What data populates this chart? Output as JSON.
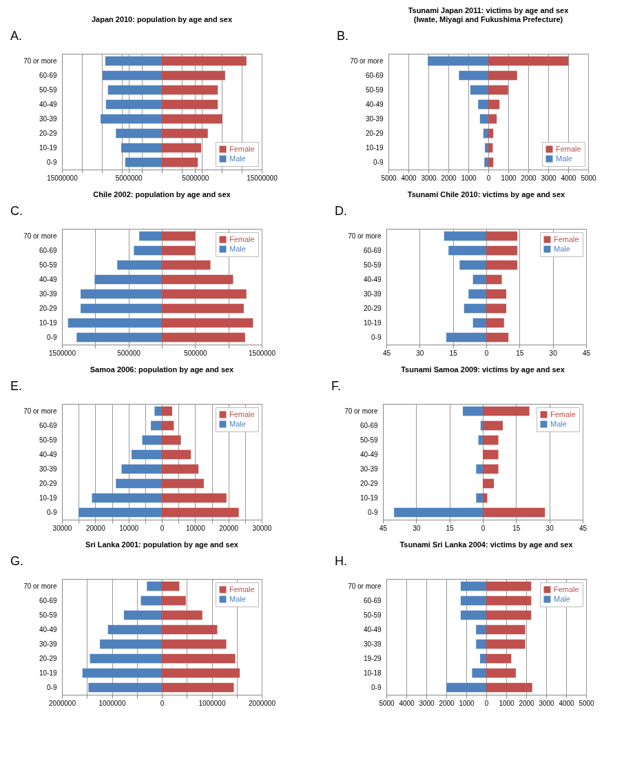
{
  "chart_data": [
    {
      "type": "bar",
      "orientation": "horizontal",
      "stacked": true,
      "title": "Japan 2010: population by age and sex",
      "annotations": [
        "A."
      ],
      "categories": [
        "70 or more",
        "60-69",
        "50-59",
        "40-49",
        "30-39",
        "20-29",
        "10-19",
        "0-9"
      ],
      "legend": "bottom right",
      "grid": true,
      "series": [
        {
          "name": "Female",
          "color": "#c0504d",
          "values": [
            12700000,
            9500000,
            8400000,
            8400000,
            9100000,
            6900000,
            5900000,
            5400000
          ]
        },
        {
          "name": "Male",
          "color": "#4f81bd",
          "values": [
            -8500000,
            -8900000,
            -8100000,
            -8400000,
            -9200000,
            -6900000,
            -6100000,
            -5500000
          ]
        }
      ],
      "xlim": [
        -15000000,
        15000000
      ],
      "xticks": [
        {
          "value": -15000000,
          "label": "15000000"
        },
        {
          "value": -12000000,
          "label": null
        },
        {
          "value": -9000000,
          "label": null
        },
        {
          "value": -6000000,
          "label": null
        },
        {
          "value": -5000000,
          "label": "5000000"
        },
        {
          "value": -3000000,
          "label": null
        },
        {
          "value": 0,
          "label": null
        },
        {
          "value": 3000000,
          "label": null
        },
        {
          "value": 5000000,
          "label": "5000000"
        },
        {
          "value": 6000000,
          "label": null
        },
        {
          "value": 9000000,
          "label": null
        },
        {
          "value": 12000000,
          "label": null
        },
        {
          "value": 15000000,
          "label": "15000000"
        }
      ]
    },
    {
      "type": "bar",
      "orientation": "horizontal",
      "stacked": true,
      "title": "Tsunami Japan 2011: victims by age and sex\n(Iwate, Miyagi and Fukushima Prefecture)",
      "annotations": [
        "B."
      ],
      "categories": [
        "70 or more",
        "60-69",
        "50-59",
        "40-49",
        "30-39",
        "20-29",
        "10-19",
        "0-9"
      ],
      "legend": "bottom right",
      "grid": true,
      "series": [
        {
          "name": "Female",
          "color": "#c0504d",
          "values": [
            4010,
            1440,
            990,
            560,
            420,
            250,
            220,
            250
          ]
        },
        {
          "name": "Male",
          "color": "#4f81bd",
          "values": [
            -3030,
            -1470,
            -900,
            -510,
            -420,
            -250,
            -170,
            -200
          ]
        }
      ],
      "xlim": [
        -5000,
        5000
      ],
      "xticks": [
        {
          "value": -5000,
          "label": "5000"
        },
        {
          "value": -4000,
          "label": "4000"
        },
        {
          "value": -3000,
          "label": "3000"
        },
        {
          "value": -2000,
          "label": "2000"
        },
        {
          "value": -1000,
          "label": "1000"
        },
        0,
        1000,
        2000,
        3000,
        4000,
        5000
      ]
    },
    {
      "type": "bar",
      "orientation": "horizontal",
      "stacked": true,
      "title": "Chile 2002: population by age and sex",
      "annotations": [
        "C."
      ],
      "categories": [
        "70 or more",
        "60-69",
        "50-59",
        "40-49",
        "30-39",
        "20-29",
        "10-19",
        "0-9"
      ],
      "legend": "top right",
      "grid": true,
      "series": [
        {
          "name": "Female",
          "color": "#c0504d",
          "values": [
            500000,
            500000,
            730000,
            1070000,
            1270000,
            1230000,
            1370000,
            1250000
          ]
        },
        {
          "name": "Male",
          "color": "#4f81bd",
          "values": [
            -340000,
            -420000,
            -670000,
            -1010000,
            -1220000,
            -1220000,
            -1410000,
            -1280000
          ]
        }
      ],
      "xlim": [
        -1500000,
        1500000
      ],
      "xticks": [
        {
          "value": -1500000,
          "label": "1500000"
        },
        {
          "value": -1000000,
          "label": null
        },
        {
          "value": -500000,
          "label": "500000"
        },
        {
          "value": 0,
          "label": null
        },
        {
          "value": 500000,
          "label": "500000"
        },
        {
          "value": 1000000,
          "label": null
        },
        {
          "value": 1500000,
          "label": "1500000"
        }
      ]
    },
    {
      "type": "bar",
      "orientation": "horizontal",
      "stacked": true,
      "title": "Tsunami Chile 2010: victims by age and sex",
      "annotations": [
        "D."
      ],
      "categories": [
        "70 or more",
        "60-69",
        "50-59",
        "40-49",
        "30-39",
        "20-29",
        "10-19",
        "0-9"
      ],
      "legend": "top right",
      "grid": true,
      "series": [
        {
          "name": "Female",
          "color": "#c0504d",
          "values": [
            14,
            14,
            14,
            7,
            9,
            9,
            8,
            10
          ]
        },
        {
          "name": "Male",
          "color": "#4f81bd",
          "values": [
            -19,
            -17,
            -12,
            -6,
            -8,
            -10,
            -6,
            -18
          ]
        }
      ],
      "xlim": [
        -45,
        45
      ],
      "xticks": [
        {
          "value": -45,
          "label": "45"
        },
        {
          "value": -30,
          "label": "30"
        },
        {
          "value": -15,
          "label": "15"
        },
        0,
        15,
        30,
        45
      ]
    },
    {
      "type": "bar",
      "orientation": "horizontal",
      "stacked": true,
      "title": "Samoa 2006: population by age and sex",
      "annotations": [
        "E."
      ],
      "categories": [
        "70 or more",
        "60-69",
        "50-59",
        "40-49",
        "30-39",
        "20-29",
        "10-19",
        "0-9"
      ],
      "legend": "top right",
      "grid": true,
      "series": [
        {
          "name": "Female",
          "color": "#c0504d",
          "values": [
            3100,
            3600,
            5700,
            8700,
            11000,
            12600,
            19400,
            23100
          ]
        },
        {
          "name": "Male",
          "color": "#4f81bd",
          "values": [
            -2200,
            -3300,
            -5900,
            -9100,
            -12100,
            -13800,
            -21000,
            -25000
          ]
        }
      ],
      "xlim": [
        -30000,
        30000
      ],
      "xticks": [
        {
          "value": -30000,
          "label": "30000"
        },
        {
          "value": -25000,
          "label": null
        },
        {
          "value": -20000,
          "label": "20000"
        },
        {
          "value": -15000,
          "label": null
        },
        {
          "value": -10000,
          "label": "10000"
        },
        {
          "value": -5000,
          "label": null
        },
        0,
        {
          "value": 5000,
          "label": null
        },
        10000,
        {
          "value": 15000,
          "label": null
        },
        20000,
        {
          "value": 25000,
          "label": null
        },
        30000
      ]
    },
    {
      "type": "bar",
      "orientation": "horizontal",
      "stacked": true,
      "title": "Tsunami Samoa 2009: victims by age and sex",
      "annotations": [
        "F."
      ],
      "categories": [
        "70 or more",
        "60-69",
        "50-59",
        "40-49",
        "30-39",
        "20-29",
        "10-19",
        "0-9"
      ],
      "legend": "top right",
      "grid": true,
      "series": [
        {
          "name": "Female",
          "color": "#c0504d",
          "values": [
            21,
            9,
            7,
            7,
            7,
            5,
            2,
            28
          ]
        },
        {
          "name": "Male",
          "color": "#4f81bd",
          "values": [
            -9,
            -1,
            -2,
            0,
            -3,
            0,
            -3,
            -40
          ]
        }
      ],
      "xlim": [
        -45,
        45
      ],
      "xticks": [
        {
          "value": -45,
          "label": "45"
        },
        {
          "value": -30,
          "label": "30"
        },
        {
          "value": -15,
          "label": "15"
        },
        0,
        15,
        30,
        45
      ]
    },
    {
      "type": "bar",
      "orientation": "horizontal",
      "stacked": true,
      "title": "Sri Lanka 2001: population by age and sex",
      "annotations": [
        "G."
      ],
      "categories": [
        "70 or more",
        "60-69",
        "50-59",
        "40-49",
        "30-39",
        "20-29",
        "10-19",
        "0-9"
      ],
      "legend": "top right",
      "grid": true,
      "series": [
        {
          "name": "Female",
          "color": "#c0504d",
          "values": [
            350000,
            480000,
            810000,
            1110000,
            1290000,
            1470000,
            1560000,
            1440000
          ]
        },
        {
          "name": "Male",
          "color": "#4f81bd",
          "values": [
            -300000,
            -420000,
            -760000,
            -1080000,
            -1240000,
            -1440000,
            -1590000,
            -1470000
          ]
        }
      ],
      "xlim": [
        -2000000,
        2000000
      ],
      "xticks": [
        {
          "value": -2000000,
          "label": "2000000"
        },
        {
          "value": -1500000,
          "label": null
        },
        {
          "value": -1000000,
          "label": "1000000"
        },
        {
          "value": -500000,
          "label": null
        },
        0,
        {
          "value": 500000,
          "label": null
        },
        1000000,
        {
          "value": 1500000,
          "label": null
        },
        2000000
      ]
    },
    {
      "type": "bar",
      "orientation": "horizontal",
      "stacked": true,
      "title": "Tsunami Sri Lanka 2004: victims by age and sex",
      "annotations": [
        "H."
      ],
      "categories": [
        "70 or more",
        "60-69",
        "50-59",
        "40-49",
        "30-39",
        "19-29",
        "10-18",
        "0-9"
      ],
      "legend": "top right",
      "grid": true,
      "series": [
        {
          "name": "Female",
          "color": "#c0504d",
          "values": [
            2250,
            2250,
            2250,
            1950,
            1950,
            1250,
            1480,
            2300
          ]
        },
        {
          "name": "Male",
          "color": "#4f81bd",
          "values": [
            -1280,
            -1280,
            -1280,
            -510,
            -510,
            -310,
            -710,
            -2000
          ]
        }
      ],
      "xlim": [
        -5000,
        5000
      ],
      "xticks": [
        {
          "value": -5000,
          "label": "5000"
        },
        {
          "value": -4000,
          "label": "4000"
        },
        {
          "value": -3000,
          "label": "3000"
        },
        {
          "value": -2000,
          "label": "2000"
        },
        {
          "value": -1000,
          "label": "1000"
        },
        0,
        1000,
        2000,
        3000,
        4000,
        5000
      ]
    }
  ]
}
